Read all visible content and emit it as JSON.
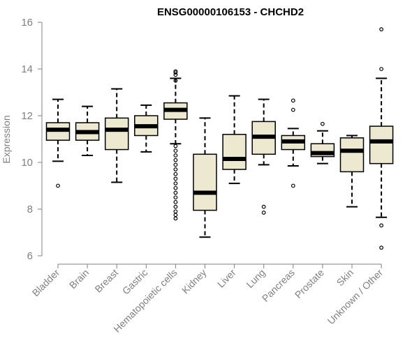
{
  "chart_data": {
    "type": "box",
    "title": "ENSG00000106153 - CHCHD2",
    "xlabel": "",
    "ylabel": "Expression",
    "ylim": [
      6,
      16
    ],
    "yticks": [
      6,
      8,
      10,
      12,
      14,
      16
    ],
    "grid": false,
    "colors": {
      "box_fill": "#ede8d0",
      "stroke": "#000000",
      "axis": "#808080"
    },
    "categories": [
      "Bladder",
      "Brain",
      "Breast",
      "Gastric",
      "Hematopoietic cells",
      "Kidney",
      "Liver",
      "Lung",
      "Pancreas",
      "Prostate",
      "Skin",
      "Unknown / Other"
    ],
    "boxes": [
      {
        "category": "Bladder",
        "whisker_low": 10.05,
        "q1": 10.95,
        "median": 11.4,
        "q3": 11.7,
        "whisker_high": 12.7,
        "outliers": [
          9.0
        ]
      },
      {
        "category": "Brain",
        "whisker_low": 10.3,
        "q1": 10.95,
        "median": 11.3,
        "q3": 11.7,
        "whisker_high": 12.4,
        "outliers": []
      },
      {
        "category": "Breast",
        "whisker_low": 9.15,
        "q1": 10.55,
        "median": 11.4,
        "q3": 11.9,
        "whisker_high": 13.15,
        "outliers": []
      },
      {
        "category": "Gastric",
        "whisker_low": 10.45,
        "q1": 11.15,
        "median": 11.55,
        "q3": 12.0,
        "whisker_high": 12.45,
        "outliers": []
      },
      {
        "category": "Hematopoietic cells",
        "whisker_low": 10.8,
        "q1": 11.85,
        "median": 12.25,
        "q3": 12.55,
        "whisker_high": 13.6,
        "outliers": [
          13.75,
          13.85,
          13.9,
          13.5,
          10.7,
          10.5,
          10.3,
          10.1,
          9.9,
          9.7,
          9.5,
          9.3,
          9.1,
          8.9,
          8.7,
          8.5,
          8.3,
          8.1,
          7.9,
          7.75,
          7.6
        ]
      },
      {
        "category": "Kidney",
        "whisker_low": 6.8,
        "q1": 7.95,
        "median": 8.7,
        "q3": 10.35,
        "whisker_high": 11.9,
        "outliers": []
      },
      {
        "category": "Liver",
        "whisker_low": 9.1,
        "q1": 9.7,
        "median": 10.15,
        "q3": 11.2,
        "whisker_high": 12.85,
        "outliers": []
      },
      {
        "category": "Lung",
        "whisker_low": 9.9,
        "q1": 10.35,
        "median": 11.1,
        "q3": 11.75,
        "whisker_high": 12.7,
        "outliers": [
          8.1,
          7.85
        ]
      },
      {
        "category": "Pancreas",
        "whisker_low": 9.85,
        "q1": 10.55,
        "median": 10.9,
        "q3": 11.15,
        "whisker_high": 11.45,
        "outliers": [
          12.65,
          12.25,
          9.0
        ]
      },
      {
        "category": "Prostate",
        "whisker_low": 9.95,
        "q1": 10.25,
        "median": 10.4,
        "q3": 10.8,
        "whisker_high": 11.35,
        "outliers": [
          11.65
        ]
      },
      {
        "category": "Skin",
        "whisker_low": 8.1,
        "q1": 9.6,
        "median": 10.5,
        "q3": 11.05,
        "whisker_high": 11.15,
        "outliers": []
      },
      {
        "category": "Unknown / Other",
        "whisker_low": 7.65,
        "q1": 9.95,
        "median": 10.9,
        "q3": 11.55,
        "whisker_high": 13.6,
        "outliers": [
          15.7,
          14.0,
          7.3,
          6.35
        ]
      }
    ]
  }
}
